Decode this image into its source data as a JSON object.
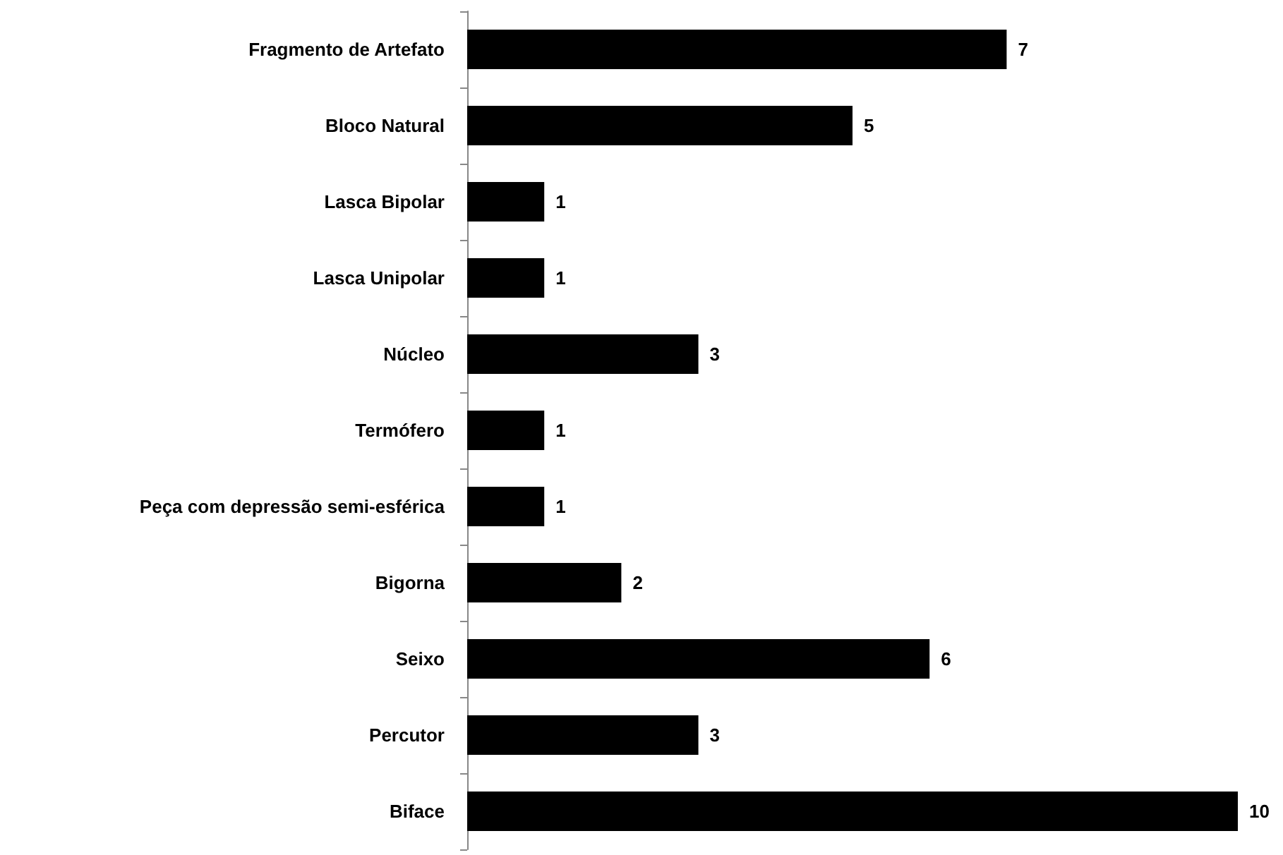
{
  "chart_data": {
    "type": "bar",
    "orientation": "horizontal",
    "categories": [
      "Fragmento de Artefato",
      "Bloco Natural",
      "Lasca Bipolar",
      "Lasca Unipolar",
      "Núcleo",
      "Termófero",
      "Peça com depressão semi-esférica",
      "Bigorna",
      "Seixo",
      "Percutor",
      "Biface"
    ],
    "values": [
      7,
      5,
      1,
      1,
      3,
      1,
      1,
      2,
      6,
      3,
      10
    ],
    "color": "#000000",
    "data_labels": true,
    "tick_labels": "y"
  }
}
